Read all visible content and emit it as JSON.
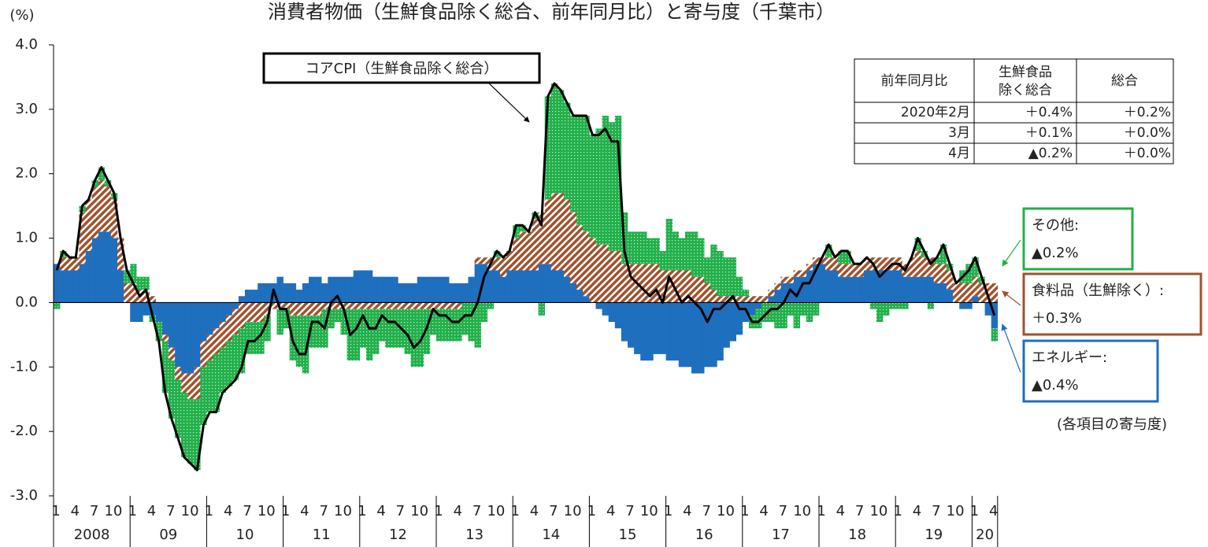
{
  "chart_data": {
    "type": "stacked_bar_line",
    "title": "消費者物価（生鮮食品除く総合、前年同月比）と寄与度（千葉市）",
    "y_unit": "(%)",
    "categories": [
      "1",
      null,
      null,
      "4",
      null,
      null,
      "7",
      null,
      null,
      "10",
      null,
      null,
      "1",
      null,
      null,
      "4",
      null,
      null,
      "7",
      null,
      null,
      "10",
      null,
      null,
      "1",
      null,
      null,
      "4",
      null,
      null,
      "7",
      null,
      null,
      "10",
      null,
      null,
      "1",
      null,
      null,
      "4",
      null,
      null,
      "7",
      null,
      null,
      "10",
      null,
      null,
      "1",
      null,
      null,
      "4",
      null,
      null,
      "7",
      null,
      null,
      "10",
      null,
      null,
      "1",
      null,
      null,
      "4",
      null,
      null,
      "7",
      null,
      null,
      "10",
      null,
      null,
      "1",
      null,
      null,
      "4",
      null,
      null,
      "7",
      null,
      null,
      "10",
      null,
      null,
      "1",
      null,
      null,
      "4",
      null,
      null,
      "7",
      null,
      null,
      "10",
      null,
      null,
      "1",
      null,
      null,
      "4",
      null,
      null,
      "7",
      null,
      null,
      "10",
      null,
      null,
      "1",
      null,
      null,
      "4",
      null,
      null,
      "7",
      null,
      null,
      "10",
      null,
      null,
      "1",
      null,
      null,
      "4",
      null,
      null,
      "7",
      null,
      null,
      "10",
      null,
      null,
      "1",
      null,
      null,
      "4",
      null,
      null,
      "7",
      null,
      null,
      "10",
      null,
      null,
      "1",
      null,
      null,
      "4"
    ],
    "years": [
      "2008",
      "09",
      "10",
      "11",
      "12",
      "13",
      "14",
      "15",
      "16",
      "17",
      "18",
      "19",
      "20"
    ],
    "ylim": [
      -3,
      4
    ],
    "yticks": [
      {
        "value": 4,
        "label": "4.0"
      },
      {
        "value": 3,
        "label": "3.0"
      },
      {
        "value": 2,
        "label": "2.0"
      },
      {
        "value": 1,
        "label": "1.0"
      },
      {
        "value": 0,
        "label": "0.0"
      },
      {
        "value": -1,
        "label": "-1.0"
      },
      {
        "value": -2,
        "label": "-2.0"
      },
      {
        "value": -3,
        "label": "-3.0"
      }
    ],
    "series": [
      {
        "name": "エネルギー:",
        "color": "#1f6fbf",
        "pattern": "solid",
        "last_label": "▲0.4%",
        "values": [
          0.6,
          0.5,
          0.5,
          0.5,
          0.6,
          0.8,
          1.0,
          1.1,
          1.1,
          1.0,
          0.5,
          0.0,
          -0.3,
          -0.3,
          -0.2,
          -0.2,
          -0.3,
          -0.5,
          -0.7,
          -1.0,
          -1.1,
          -1.1,
          -1.0,
          -0.6,
          -0.5,
          -0.4,
          -0.3,
          -0.2,
          -0.1,
          0.1,
          0.2,
          0.2,
          0.3,
          0.3,
          0.3,
          0.4,
          0.3,
          0.3,
          0.2,
          0.3,
          0.4,
          0.4,
          0.3,
          0.4,
          0.4,
          0.4,
          0.4,
          0.5,
          0.5,
          0.5,
          0.4,
          0.4,
          0.4,
          0.4,
          0.3,
          0.3,
          0.3,
          0.4,
          0.4,
          0.4,
          0.4,
          0.4,
          0.3,
          0.3,
          0.3,
          0.4,
          0.6,
          0.6,
          0.5,
          0.5,
          0.4,
          0.5,
          0.5,
          0.5,
          0.5,
          0.5,
          0.6,
          0.6,
          0.5,
          0.5,
          0.4,
          0.3,
          0.2,
          0.1,
          0.0,
          -0.1,
          -0.2,
          -0.3,
          -0.4,
          -0.6,
          -0.7,
          -0.8,
          -0.9,
          -0.9,
          -0.8,
          -0.8,
          -0.9,
          -0.9,
          -1.0,
          -1.0,
          -1.1,
          -1.1,
          -1.0,
          -1.0,
          -0.9,
          -0.7,
          -0.6,
          -0.5,
          -0.3,
          -0.2,
          -0.1,
          0.0,
          0.1,
          0.2,
          0.3,
          0.3,
          0.4,
          0.4,
          0.5,
          0.6,
          0.6,
          0.5,
          0.5,
          0.4,
          0.4,
          0.4,
          0.4,
          0.5,
          0.5,
          0.5,
          0.5,
          0.5,
          0.5,
          0.4,
          0.4,
          0.4,
          0.4,
          0.4,
          0.3,
          0.3,
          0.2,
          0.0,
          -0.1,
          -0.1,
          0.1,
          0.0,
          -0.2,
          -0.4
        ]
      },
      {
        "name": "食料品（生鮮除く）:",
        "color": "#a0522d",
        "pattern": "hatch",
        "last_label": "＋0.3%",
        "values": [
          0.0,
          0.2,
          0.2,
          0.2,
          0.8,
          0.8,
          0.8,
          0.8,
          0.7,
          0.6,
          0.5,
          0.3,
          0.3,
          0.2,
          0.2,
          0.1,
          0.0,
          -0.1,
          -0.2,
          -0.2,
          -0.3,
          -0.4,
          -0.5,
          -0.4,
          -0.4,
          -0.4,
          -0.4,
          -0.4,
          -0.4,
          -0.4,
          -0.3,
          -0.3,
          -0.3,
          -0.2,
          -0.1,
          -0.1,
          -0.1,
          -0.2,
          -0.2,
          -0.2,
          -0.2,
          -0.2,
          -0.1,
          -0.1,
          -0.1,
          -0.1,
          -0.1,
          -0.1,
          -0.1,
          -0.1,
          -0.1,
          -0.1,
          -0.1,
          -0.1,
          -0.1,
          -0.1,
          -0.1,
          -0.1,
          -0.1,
          -0.1,
          -0.1,
          -0.1,
          -0.1,
          -0.1,
          0.0,
          0.0,
          0.1,
          0.1,
          0.2,
          0.2,
          0.3,
          0.3,
          0.5,
          0.6,
          0.6,
          0.8,
          0.8,
          1.0,
          1.2,
          1.2,
          1.2,
          1.1,
          1.0,
          1.0,
          1.0,
          0.9,
          0.9,
          0.8,
          0.8,
          0.6,
          0.6,
          0.6,
          0.6,
          0.6,
          0.6,
          0.5,
          0.5,
          0.5,
          0.5,
          0.5,
          0.4,
          0.4,
          0.3,
          0.2,
          0.1,
          0.1,
          0.1,
          0.1,
          0.1,
          0.1,
          0.1,
          0.1,
          0.1,
          0.1,
          0.1,
          0.1,
          0.1,
          0.1,
          0.1,
          0.1,
          0.1,
          0.2,
          0.2,
          0.2,
          0.2,
          0.2,
          0.2,
          0.2,
          0.2,
          0.2,
          0.2,
          0.2,
          0.2,
          0.2,
          0.3,
          0.4,
          0.3,
          0.3,
          0.3,
          0.3,
          0.3,
          0.3,
          0.3,
          0.3,
          0.3,
          0.3,
          0.3,
          0.3
        ]
      },
      {
        "name": "その他:",
        "color": "#22b04b",
        "pattern": "dots",
        "last_label": "▲0.2%",
        "values": [
          -0.1,
          0.1,
          0.0,
          0.0,
          0.1,
          0.0,
          0.1,
          0.2,
          0.1,
          0.1,
          0.0,
          0.2,
          0.3,
          0.2,
          0.2,
          -0.1,
          -0.3,
          -0.8,
          -0.9,
          -0.9,
          -1.0,
          -1.0,
          -1.1,
          -0.9,
          -0.8,
          -0.9,
          -0.7,
          -0.7,
          -0.7,
          -0.7,
          -0.5,
          -0.5,
          -0.5,
          -0.4,
          0.0,
          -0.4,
          -0.3,
          -0.7,
          -0.8,
          -0.9,
          -0.5,
          -0.5,
          -0.6,
          -0.3,
          -0.2,
          -0.4,
          -0.8,
          -0.8,
          -0.6,
          -0.8,
          -0.7,
          -0.5,
          -0.6,
          -0.6,
          -0.6,
          -0.7,
          -0.9,
          -0.9,
          -0.7,
          -0.4,
          -0.5,
          -0.5,
          -0.5,
          -0.5,
          -0.5,
          -0.6,
          -0.7,
          -0.3,
          -0.1,
          0.1,
          0.0,
          0.0,
          0.2,
          0.1,
          0.0,
          0.1,
          -0.2,
          1.6,
          1.7,
          1.6,
          1.5,
          1.5,
          1.7,
          1.8,
          1.6,
          1.8,
          2.0,
          2.0,
          2.1,
          0.8,
          0.5,
          0.5,
          0.5,
          0.4,
          0.4,
          0.3,
          0.8,
          0.6,
          0.5,
          0.6,
          0.7,
          0.6,
          0.4,
          0.7,
          0.7,
          0.6,
          0.6,
          0.3,
          0.1,
          -0.2,
          -0.3,
          -0.3,
          -0.3,
          -0.4,
          -0.4,
          -0.2,
          -0.4,
          -0.2,
          -0.3,
          -0.2,
          0.0,
          0.2,
          0.0,
          0.2,
          0.2,
          0.0,
          0.0,
          0.0,
          -0.1,
          -0.3,
          -0.2,
          -0.1,
          -0.1,
          -0.1,
          0.0,
          0.2,
          0.1,
          -0.1,
          0.1,
          0.3,
          0.1,
          0.0,
          0.2,
          0.3,
          0.3,
          0.1,
          0.0,
          -0.2
        ]
      }
    ],
    "line": {
      "name": "コアCPI（生鮮食品除く総合）",
      "color": "#000000",
      "values": [
        0.5,
        0.8,
        0.7,
        0.7,
        1.5,
        1.6,
        1.9,
        2.1,
        1.9,
        1.7,
        1.0,
        0.5,
        0.3,
        0.1,
        0.2,
        -0.2,
        -0.6,
        -1.4,
        -1.8,
        -2.1,
        -2.4,
        -2.5,
        -2.6,
        -1.9,
        -1.7,
        -1.7,
        -1.4,
        -1.3,
        -1.2,
        -1.0,
        -0.6,
        -0.6,
        -0.5,
        -0.3,
        0.2,
        -0.1,
        -0.1,
        -0.6,
        -0.8,
        -0.8,
        -0.3,
        -0.3,
        -0.4,
        0.0,
        0.1,
        -0.1,
        -0.5,
        -0.4,
        -0.2,
        -0.4,
        -0.4,
        -0.2,
        -0.3,
        -0.3,
        -0.4,
        -0.5,
        -0.7,
        -0.6,
        -0.4,
        -0.1,
        -0.2,
        -0.2,
        -0.3,
        -0.3,
        -0.2,
        -0.2,
        0.0,
        0.4,
        0.6,
        0.8,
        0.7,
        0.8,
        1.2,
        1.2,
        1.1,
        1.4,
        1.2,
        3.2,
        3.4,
        3.3,
        3.1,
        2.9,
        2.9,
        2.9,
        2.6,
        2.6,
        2.7,
        2.5,
        2.5,
        0.8,
        0.4,
        0.3,
        0.2,
        0.1,
        0.2,
        0.0,
        0.4,
        0.2,
        0.0,
        0.1,
        0.0,
        -0.1,
        -0.3,
        -0.1,
        -0.1,
        0.0,
        0.1,
        -0.1,
        -0.1,
        -0.3,
        -0.3,
        -0.2,
        -0.1,
        -0.1,
        0.0,
        0.2,
        0.1,
        0.3,
        0.3,
        0.5,
        0.7,
        0.9,
        0.7,
        0.8,
        0.8,
        0.6,
        0.6,
        0.7,
        0.6,
        0.4,
        0.5,
        0.6,
        0.6,
        0.5,
        0.7,
        1.0,
        0.8,
        0.6,
        0.7,
        0.9,
        0.6,
        0.3,
        0.4,
        0.5,
        0.7,
        0.4,
        0.1,
        -0.2
      ]
    },
    "legend_note": "(各項目の寄与度)",
    "table": {
      "header": [
        "前年同月比",
        "生鮮食品",
        "除く総合",
        "総合"
      ],
      "rows": [
        [
          "2020年2月",
          "＋0.4%",
          "＋0.2%"
        ],
        [
          "3月",
          "＋0.1%",
          "＋0.0%"
        ],
        [
          "4月",
          "▲0.2%",
          "＋0.0%"
        ]
      ]
    }
  }
}
